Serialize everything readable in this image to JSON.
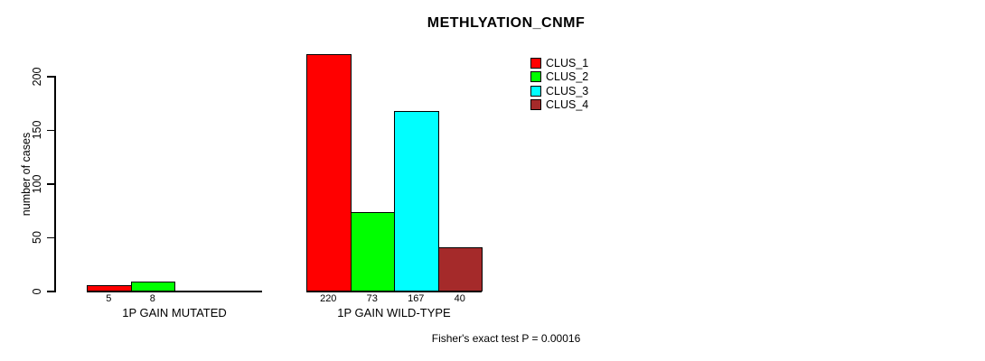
{
  "chart_data": {
    "type": "bar",
    "title": "METHLYATION_CNMF",
    "xlabel": "",
    "ylabel": "number of cases",
    "ylim": [
      0,
      220
    ],
    "yticks": [
      0,
      50,
      100,
      150,
      200
    ],
    "grid": false,
    "legend_position": "top-right",
    "series": [
      {
        "name": "CLUS_1",
        "color": "#FF0000"
      },
      {
        "name": "CLUS_2",
        "color": "#00FF00"
      },
      {
        "name": "CLUS_3",
        "color": "#00FFFF"
      },
      {
        "name": "CLUS_4",
        "color": "#A52A2A"
      }
    ],
    "groups": [
      {
        "label": "1P GAIN MUTATED",
        "values": [
          5,
          8,
          0,
          0
        ],
        "value_labels": [
          "5",
          "8",
          "",
          ""
        ]
      },
      {
        "label": "1P GAIN WILD-TYPE",
        "values": [
          220,
          73,
          167,
          40
        ],
        "value_labels": [
          "220",
          "73",
          "167",
          "40"
        ]
      }
    ],
    "annotation": "Fisher's exact test P = 0.00016"
  },
  "colors": {
    "background": "#FFFFFF",
    "axis": "#000000",
    "text": "#000000",
    "clus_1": "#FF0000",
    "clus_2": "#00FF00",
    "clus_3": "#00FFFF",
    "clus_4": "#A52A2A"
  }
}
